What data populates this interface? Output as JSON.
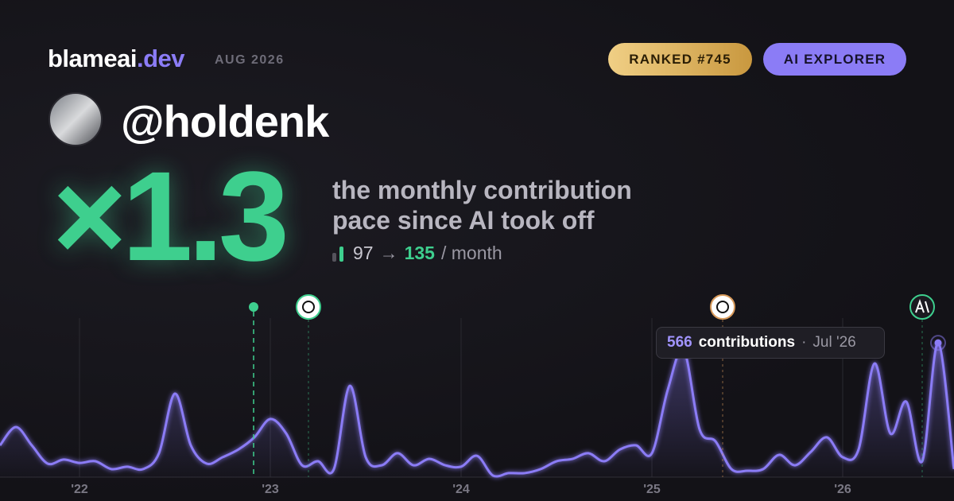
{
  "header": {
    "brand": "blameai",
    "brand_suffix": ".dev",
    "period": "AUG 2026",
    "rank_badge": "RANKED #745",
    "tier_badge": "AI EXPLORER"
  },
  "profile": {
    "handle": "@holdenk"
  },
  "stat": {
    "multiplier": "×1.3",
    "caption": [
      "the monthly contribution",
      "pace since AI took off"
    ],
    "before": 97,
    "arrow": "→",
    "after": 135,
    "unit": "/ month"
  },
  "chart_data": {
    "type": "line",
    "categories": [
      null,
      null,
      null,
      null,
      null,
      "'22",
      null,
      null,
      null,
      null,
      null,
      null,
      null,
      null,
      null,
      null,
      null,
      "'23",
      null,
      null,
      null,
      null,
      null,
      null,
      null,
      null,
      null,
      null,
      null,
      "'24",
      null,
      null,
      null,
      null,
      null,
      null,
      null,
      null,
      null,
      null,
      null,
      "'25",
      null,
      null,
      null,
      null,
      null,
      null,
      null,
      null,
      null,
      null,
      null,
      "'26",
      null,
      null,
      null,
      null,
      null,
      null,
      null
    ],
    "series": [
      {
        "name": "contributions",
        "color": "#8b7cf6",
        "values": [
          134,
          211,
          134,
          57,
          74,
          60,
          67,
          34,
          44,
          34,
          101,
          352,
          134,
          57,
          84,
          117,
          168,
          245,
          184,
          50,
          67,
          34,
          385,
          84,
          50,
          101,
          50,
          77,
          50,
          44,
          90,
          7,
          17,
          17,
          34,
          67,
          77,
          101,
          67,
          117,
          134,
          101,
          369,
          536,
          201,
          151,
          34,
          27,
          34,
          94,
          50,
          107,
          168,
          84,
          117,
          479,
          184,
          318,
          67,
          566,
          34
        ]
      }
    ],
    "ylim": [
      0,
      600
    ],
    "tooltip": {
      "value": 566,
      "label": "contributions",
      "separator": "·",
      "date": "Jul '26"
    }
  }
}
